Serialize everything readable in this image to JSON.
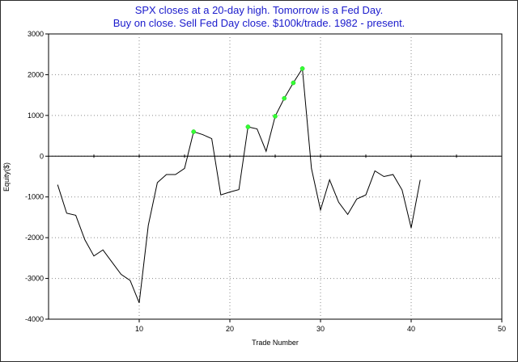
{
  "chart_data": {
    "type": "line",
    "title": "SPX closes at a 20-day high. Tomorrow is a Fed Day.",
    "subtitle": "Buy on close. Sell Fed Day close. $100k/trade. 1982 - present.",
    "xlabel": "Trade Number",
    "ylabel": "Equity($)",
    "xlim": [
      0,
      50
    ],
    "ylim": [
      -4000,
      3000
    ],
    "xticks": [
      10,
      20,
      30,
      40,
      50
    ],
    "yticks": [
      3000,
      2000,
      1000,
      0,
      -1000,
      -2000,
      -3000,
      -4000
    ],
    "grid": true,
    "line_color": "#000000",
    "highlight_color": "#33ff33",
    "title_color": "#1a1acc",
    "x": [
      1,
      2,
      3,
      4,
      5,
      6,
      7,
      8,
      9,
      10,
      11,
      12,
      13,
      14,
      15,
      16,
      17,
      18,
      19,
      20,
      21,
      22,
      23,
      24,
      25,
      26,
      27,
      28,
      29,
      30,
      31,
      32,
      33,
      34,
      35,
      36,
      37,
      38,
      39,
      40,
      41
    ],
    "values": [
      -700,
      -1400,
      -1450,
      -2050,
      -2450,
      -2300,
      -2600,
      -2900,
      -3050,
      -3600,
      -1700,
      -650,
      -450,
      -450,
      -300,
      600,
      530,
      430,
      -950,
      -880,
      -820,
      720,
      670,
      120,
      980,
      1420,
      1800,
      2150,
      -300,
      -1320,
      -580,
      -1130,
      -1430,
      -1050,
      -950,
      -360,
      -500,
      -450,
      -830,
      -1760,
      -580
    ],
    "highlighted_points": [
      16,
      22,
      25,
      26,
      27,
      28
    ]
  }
}
